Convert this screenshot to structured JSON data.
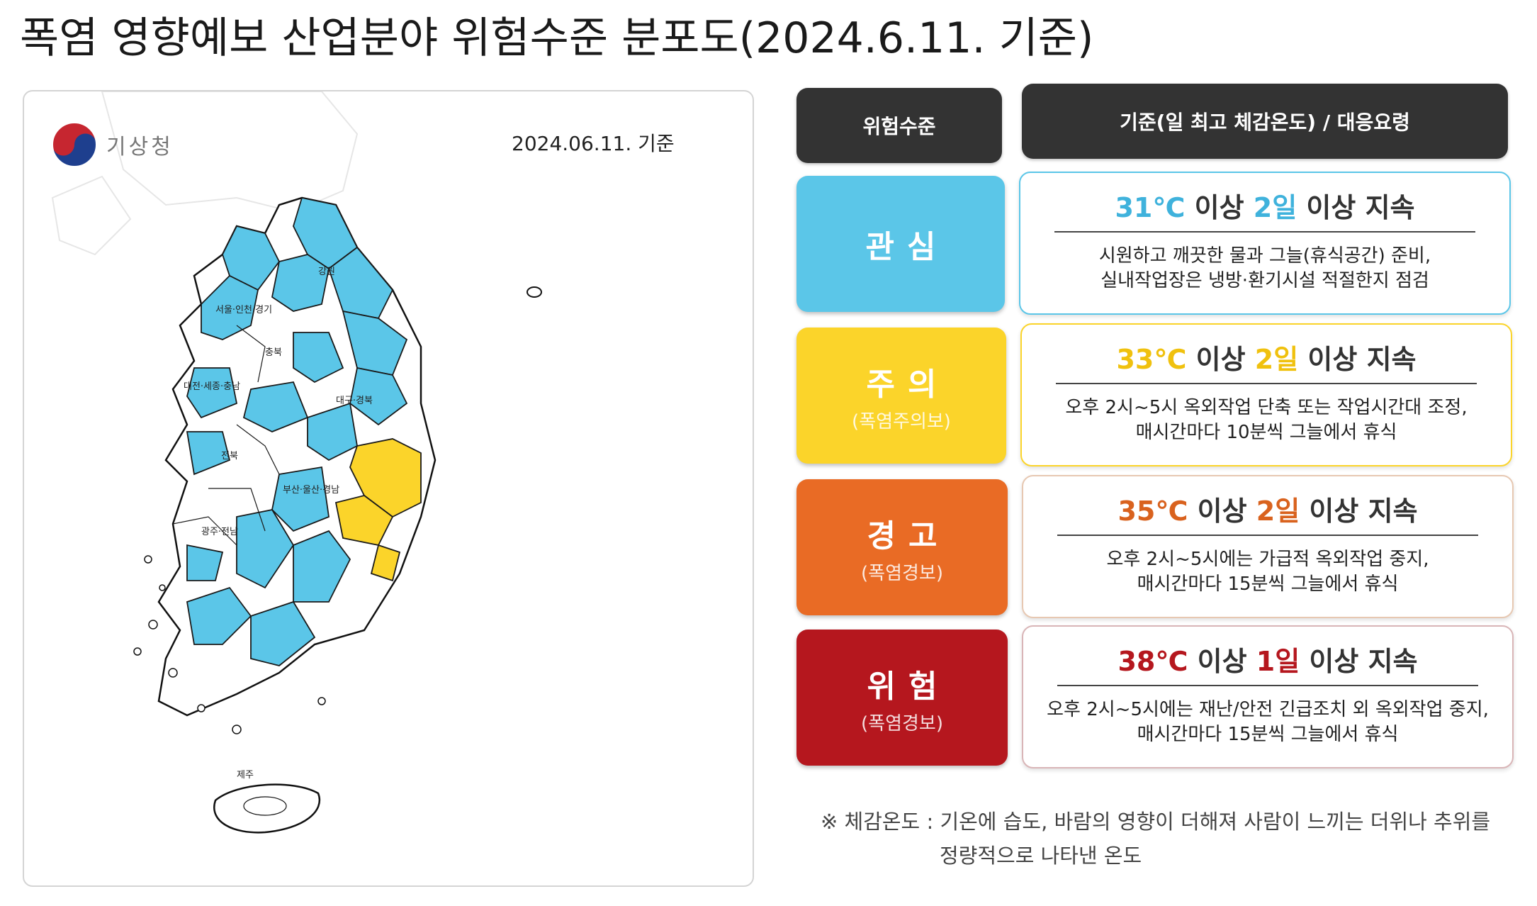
{
  "title": "폭염 영향예보 산업분야 위험수준 분포도(2024.6.11. 기준)",
  "map": {
    "logo_text": "기상청",
    "date": "2024.06.11. 기준",
    "region_labels": [
      "강원",
      "서울·인천·경기",
      "충북",
      "대전·세종·충남",
      "대구·경북",
      "전북",
      "부산·울산·경남",
      "광주·전남",
      "제주"
    ]
  },
  "colors": {
    "관심": "#5bc6e8",
    "주의": "#fbd42a",
    "경고": "#e96b25",
    "위험": "#b5171e",
    "header": "#333333"
  },
  "legend": {
    "header_level": "위험수준",
    "header_criteria": "기준(일 최고 체감온도) / 대응요령",
    "levels": [
      {
        "name": "관심",
        "sub": "",
        "temp": "31℃",
        "days": "2일",
        "lines": [
          "시원하고 깨끗한 물과 그늘(휴식공간) 준비,",
          "실내작업장은 냉방·환기시설 적절한지 점검"
        ]
      },
      {
        "name": "주의",
        "sub": "(폭염주의보)",
        "temp": "33℃",
        "days": "2일",
        "lines": [
          "오후 2시~5시 옥외작업 단축 또는 작업시간대 조정,",
          "매시간마다 10분씩 그늘에서 휴식"
        ]
      },
      {
        "name": "경고",
        "sub": "(폭염경보)",
        "temp": "35℃",
        "days": "2일",
        "lines": [
          "오후 2시~5시에는 가급적 옥외작업 중지,",
          "매시간마다 15분씩 그늘에서 휴식"
        ]
      },
      {
        "name": "위험",
        "sub": "(폭염경보)",
        "temp": "38℃",
        "days": "1일",
        "lines": [
          "오후 2시~5시에는 재난/안전 긴급조치 외 옥외작업 중지,",
          "매시간마다 15분씩 그늘에서 휴식"
        ]
      }
    ],
    "text_above": "이상",
    "text_persist": "이상 지속"
  },
  "note": {
    "line1": "※ 체감온도 : 기온에 습도, 바람의 영향이 더해져 사람이 느끼는 더위나 추위를",
    "line2": "정량적으로 나타낸 온도"
  }
}
